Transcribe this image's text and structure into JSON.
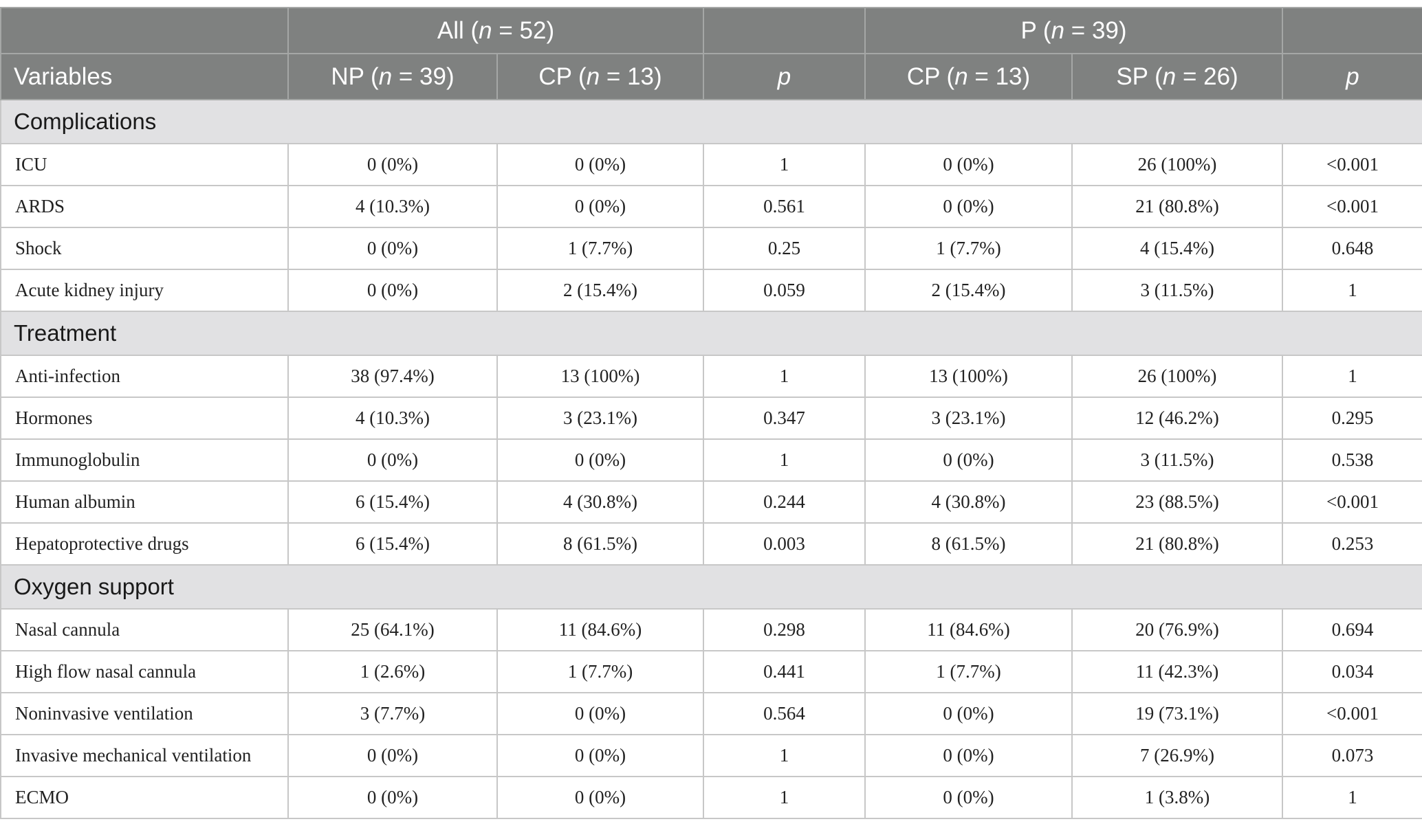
{
  "header": {
    "group_all_prefix": "All (",
    "group_all_n": "n",
    "group_all_suffix": " = 52)",
    "group_p_prefix": "P (",
    "group_p_n": "n",
    "group_p_suffix": " = 39)",
    "variables": "Variables",
    "np_prefix": "NP (",
    "np_n": "n",
    "np_suffix": " = 39)",
    "cp1_prefix": "CP (",
    "cp1_n": "n",
    "cp1_suffix": " = 13)",
    "p1": "p",
    "cp2_prefix": "CP (",
    "cp2_n": "n",
    "cp2_suffix": " = 13)",
    "sp_prefix": "SP (",
    "sp_n": "n",
    "sp_suffix": " = 26)",
    "p2": "p"
  },
  "sections": [
    {
      "title": "Complications",
      "rows": [
        [
          "ICU",
          "0 (0%)",
          "0 (0%)",
          "1",
          "0 (0%)",
          "26 (100%)",
          "<0.001"
        ],
        [
          "ARDS",
          "4 (10.3%)",
          "0 (0%)",
          "0.561",
          "0 (0%)",
          "21 (80.8%)",
          "<0.001"
        ],
        [
          "Shock",
          "0 (0%)",
          "1 (7.7%)",
          "0.25",
          "1 (7.7%)",
          "4 (15.4%)",
          "0.648"
        ],
        [
          "Acute kidney injury",
          "0 (0%)",
          "2 (15.4%)",
          "0.059",
          "2 (15.4%)",
          "3 (11.5%)",
          "1"
        ]
      ]
    },
    {
      "title": "Treatment",
      "rows": [
        [
          "Anti-infection",
          "38 (97.4%)",
          "13 (100%)",
          "1",
          "13 (100%)",
          "26 (100%)",
          "1"
        ],
        [
          "Hormones",
          "4 (10.3%)",
          "3 (23.1%)",
          "0.347",
          "3 (23.1%)",
          "12 (46.2%)",
          "0.295"
        ],
        [
          "Immunoglobulin",
          "0 (0%)",
          "0 (0%)",
          "1",
          "0 (0%)",
          "3 (11.5%)",
          "0.538"
        ],
        [
          "Human albumin",
          "6 (15.4%)",
          "4 (30.8%)",
          "0.244",
          "4 (30.8%)",
          "23 (88.5%)",
          "<0.001"
        ],
        [
          "Hepatoprotective drugs",
          "6 (15.4%)",
          "8 (61.5%)",
          "0.003",
          "8 (61.5%)",
          "21 (80.8%)",
          "0.253"
        ]
      ]
    },
    {
      "title": "Oxygen support",
      "rows": [
        [
          "Nasal cannula",
          "25 (64.1%)",
          "11 (84.6%)",
          "0.298",
          "11 (84.6%)",
          "20 (76.9%)",
          "0.694"
        ],
        [
          "High flow nasal cannula",
          "1 (2.6%)",
          "1 (7.7%)",
          "0.441",
          "1 (7.7%)",
          "11 (42.3%)",
          "0.034"
        ],
        [
          "Noninvasive ventilation",
          "3 (7.7%)",
          "0 (0%)",
          "0.564",
          "0 (0%)",
          "19 (73.1%)",
          "<0.001"
        ],
        [
          "Invasive mechanical ventilation",
          "0 (0%)",
          "0 (0%)",
          "1",
          "0 (0%)",
          "7 (26.9%)",
          "0.073"
        ],
        [
          "ECMO",
          "0 (0%)",
          "0 (0%)",
          "1",
          "0 (0%)",
          "1 (3.8%)",
          "1"
        ]
      ]
    }
  ]
}
